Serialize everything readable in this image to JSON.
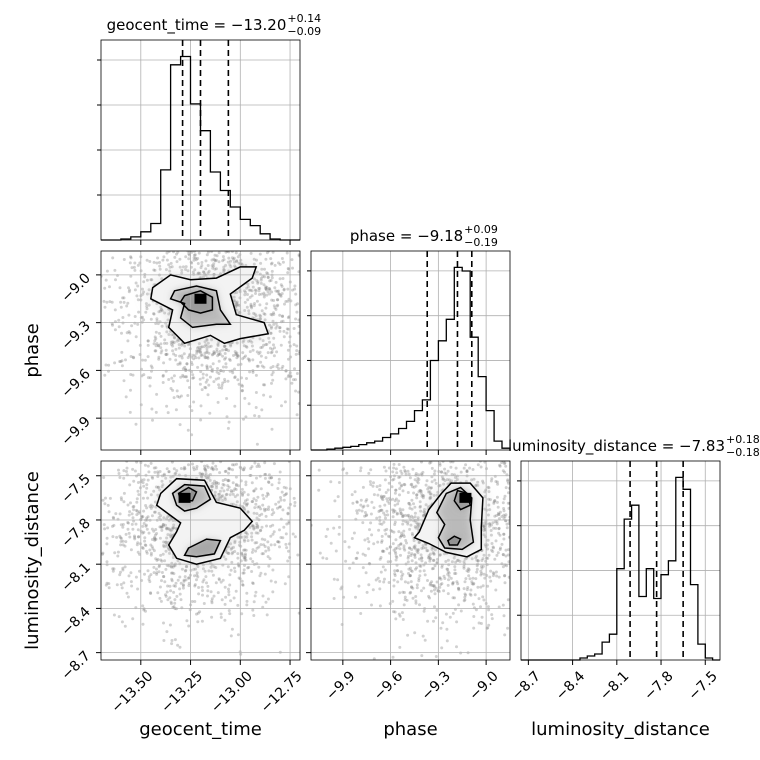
{
  "chart_data": {
    "type": "corner",
    "grid": true,
    "parameters": [
      "geocent_time",
      "phase",
      "luminosity_distance"
    ],
    "ranges": {
      "geocent_time": [
        -13.7,
        -12.7
      ],
      "phase": [
        -10.1,
        -8.85
      ],
      "luminosity_distance": [
        -8.75,
        -7.4
      ]
    },
    "ticks": {
      "geocent_time": [
        -13.5,
        -13.25,
        -13.0,
        -12.75
      ],
      "phase": [
        -9.9,
        -9.6,
        -9.3,
        -9.0
      ],
      "luminosity_distance": [
        -8.7,
        -8.4,
        -8.1,
        -7.8,
        -7.5
      ]
    },
    "tick_labels": {
      "geocent_time": [
        "−13.50",
        "−13.25",
        "−13.00",
        "−12.75"
      ],
      "phase": [
        "−9.9",
        "−9.6",
        "−9.3",
        "−9.0"
      ],
      "luminosity_distance": [
        "−8.7",
        "−8.4",
        "−8.1",
        "−7.8",
        "−7.5"
      ]
    },
    "axis_labels": {
      "geocent_time": "geocent_time",
      "phase": "phase",
      "luminosity_distance": "luminosity_distance"
    },
    "titles": [
      {
        "param": "geocent_time",
        "main": "geocent_time = −13.20",
        "upper": "+0.14",
        "lower": "−0.09"
      },
      {
        "param": "phase",
        "main": "phase = −9.18",
        "upper": "+0.09",
        "lower": "−0.19"
      },
      {
        "param": "luminosity_distance",
        "main": "luminosity_distance = −7.83",
        "upper": "+0.18",
        "lower": "−0.18"
      }
    ],
    "quantiles": {
      "geocent_time": [
        -13.29,
        -13.2,
        -13.06
      ],
      "phase": [
        -9.37,
        -9.18,
        -9.09
      ],
      "luminosity_distance": [
        -8.01,
        -7.83,
        -7.65
      ]
    },
    "histograms": {
      "geocent_time": {
        "edges": [
          -13.7,
          -13.65,
          -13.6,
          -13.55,
          -13.5,
          -13.45,
          -13.4,
          -13.35,
          -13.3,
          -13.25,
          -13.2,
          -13.15,
          -13.1,
          -13.05,
          -13.0,
          -12.95,
          -12.9,
          -12.85,
          -12.8,
          -12.75,
          -12.7
        ],
        "counts": [
          0,
          0,
          0.5,
          1.5,
          4,
          8,
          34,
          85,
          89,
          66,
          53,
          33,
          24,
          16,
          10,
          7,
          3,
          0.5,
          0,
          0
        ]
      },
      "phase": {
        "edges": [
          -10.1,
          -10.05,
          -10.0,
          -9.95,
          -9.9,
          -9.85,
          -9.8,
          -9.75,
          -9.7,
          -9.65,
          -9.6,
          -9.55,
          -9.5,
          -9.45,
          -9.4,
          -9.35,
          -9.3,
          -9.25,
          -9.2,
          -9.15,
          -9.1,
          -9.05,
          -9.0,
          -8.95,
          -8.9,
          -8.85
        ],
        "counts": [
          0,
          0,
          0.5,
          1,
          1.5,
          2,
          3,
          4,
          5,
          7,
          9,
          12,
          16,
          22,
          28,
          50,
          61,
          73,
          102,
          100,
          63,
          41,
          22,
          5,
          1
        ]
      },
      "luminosity_distance": {
        "edges": [
          -8.75,
          -8.7,
          -8.65,
          -8.6,
          -8.55,
          -8.5,
          -8.45,
          -8.4,
          -8.35,
          -8.3,
          -8.25,
          -8.2,
          -8.15,
          -8.1,
          -8.05,
          -8.0,
          -7.95,
          -7.9,
          -7.85,
          -7.8,
          -7.75,
          -7.7,
          -7.65,
          -7.6,
          -7.55,
          -7.5,
          -7.45,
          -7.4
        ],
        "counts": [
          0,
          0,
          0,
          0,
          0,
          0,
          0,
          0,
          1,
          2,
          3,
          9,
          13,
          46,
          71,
          78,
          32,
          46,
          31,
          43,
          50,
          92,
          86,
          38,
          8,
          1,
          0
        ]
      }
    },
    "pairs": [
      {
        "x": "geocent_time",
        "y": "phase",
        "peak": [
          -13.2,
          -9.15
        ],
        "contours": [
          [
            [
              -13.44,
              -9.08
            ],
            [
              -13.35,
              -9.0
            ],
            [
              -13.25,
              -9.03
            ],
            [
              -13.12,
              -9.02
            ],
            [
              -13.0,
              -8.95
            ],
            [
              -12.92,
              -8.95
            ],
            [
              -12.94,
              -9.02
            ],
            [
              -13.05,
              -9.12
            ],
            [
              -13.02,
              -9.25
            ],
            [
              -12.88,
              -9.3
            ],
            [
              -12.86,
              -9.37
            ],
            [
              -13.0,
              -9.4
            ],
            [
              -13.08,
              -9.43
            ],
            [
              -13.15,
              -9.38
            ],
            [
              -13.28,
              -9.43
            ],
            [
              -13.36,
              -9.33
            ],
            [
              -13.34,
              -9.22
            ],
            [
              -13.45,
              -9.15
            ]
          ],
          [
            [
              -13.33,
              -9.1
            ],
            [
              -13.22,
              -9.07
            ],
            [
              -13.12,
              -9.1
            ],
            [
              -13.1,
              -9.22
            ],
            [
              -13.05,
              -9.31
            ],
            [
              -13.12,
              -9.31
            ],
            [
              -13.24,
              -9.33
            ],
            [
              -13.3,
              -9.27
            ],
            [
              -13.28,
              -9.18
            ],
            [
              -13.35,
              -9.15
            ]
          ],
          [
            [
              -13.28,
              -9.13
            ],
            [
              -13.2,
              -9.1
            ],
            [
              -13.14,
              -9.14
            ],
            [
              -13.14,
              -9.22
            ],
            [
              -13.2,
              -9.24
            ],
            [
              -13.26,
              -9.22
            ],
            [
              -13.3,
              -9.17
            ]
          ]
        ]
      },
      {
        "x": "geocent_time",
        "y": "luminosity_distance",
        "peak": [
          -13.28,
          -7.65
        ],
        "contours": [
          [
            [
              -13.4,
              -7.62
            ],
            [
              -13.32,
              -7.52
            ],
            [
              -13.18,
              -7.53
            ],
            [
              -13.12,
              -7.68
            ],
            [
              -13.0,
              -7.72
            ],
            [
              -12.94,
              -7.81
            ],
            [
              -12.98,
              -7.87
            ],
            [
              -13.05,
              -7.92
            ],
            [
              -13.1,
              -8.06
            ],
            [
              -13.22,
              -8.1
            ],
            [
              -13.32,
              -8.06
            ],
            [
              -13.36,
              -7.97
            ],
            [
              -13.32,
              -7.88
            ],
            [
              -13.3,
              -7.82
            ],
            [
              -13.36,
              -7.76
            ],
            [
              -13.42,
              -7.7
            ]
          ],
          [
            [
              -13.34,
              -7.62
            ],
            [
              -13.28,
              -7.56
            ],
            [
              -13.18,
              -7.57
            ],
            [
              -13.15,
              -7.66
            ],
            [
              -13.22,
              -7.72
            ],
            [
              -13.28,
              -7.74
            ],
            [
              -13.32,
              -7.7
            ]
          ],
          [
            [
              -13.26,
              -7.99
            ],
            [
              -13.17,
              -7.93
            ],
            [
              -13.1,
              -7.94
            ],
            [
              -13.13,
              -8.03
            ],
            [
              -13.22,
              -8.05
            ],
            [
              -13.28,
              -8.04
            ]
          ],
          [
            [
              -13.31,
              -7.62
            ],
            [
              -13.26,
              -7.58
            ],
            [
              -13.22,
              -7.61
            ],
            [
              -13.24,
              -7.67
            ],
            [
              -13.3,
              -7.67
            ]
          ]
        ]
      },
      {
        "x": "phase",
        "y": "luminosity_distance",
        "peak": [
          -9.13,
          -7.65
        ],
        "contours": [
          [
            [
              -9.42,
              -7.88
            ],
            [
              -9.36,
              -7.73
            ],
            [
              -9.28,
              -7.62
            ],
            [
              -9.22,
              -7.55
            ],
            [
              -9.1,
              -7.55
            ],
            [
              -9.02,
              -7.65
            ],
            [
              -9.03,
              -7.85
            ],
            [
              -9.03,
              -8.0
            ],
            [
              -9.12,
              -8.05
            ],
            [
              -9.25,
              -8.02
            ],
            [
              -9.36,
              -7.96
            ],
            [
              -9.45,
              -7.92
            ]
          ],
          [
            [
              -9.31,
              -7.75
            ],
            [
              -9.25,
              -7.62
            ],
            [
              -9.16,
              -7.58
            ],
            [
              -9.09,
              -7.65
            ],
            [
              -9.1,
              -7.8
            ],
            [
              -9.08,
              -7.95
            ],
            [
              -9.15,
              -8.0
            ],
            [
              -9.26,
              -7.99
            ],
            [
              -9.3,
              -7.92
            ],
            [
              -9.26,
              -7.83
            ]
          ],
          [
            [
              -9.2,
              -7.67
            ],
            [
              -9.18,
              -7.6
            ],
            [
              -9.12,
              -7.62
            ],
            [
              -9.1,
              -7.7
            ],
            [
              -9.16,
              -7.73
            ]
          ],
          [
            [
              -9.24,
              -7.94
            ],
            [
              -9.2,
              -7.91
            ],
            [
              -9.16,
              -7.93
            ],
            [
              -9.18,
              -7.97
            ],
            [
              -9.23,
              -7.97
            ]
          ]
        ]
      }
    ]
  }
}
